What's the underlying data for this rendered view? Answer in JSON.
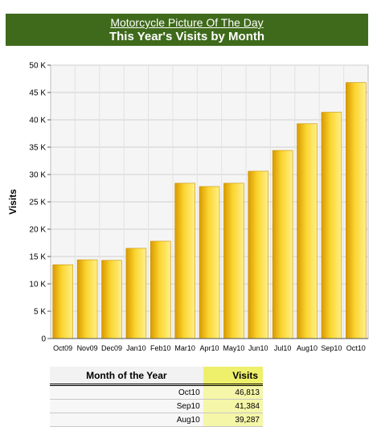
{
  "header": {
    "site_link": "Motorcycle Picture Of The Day",
    "title": "This Year's Visits by Month"
  },
  "chart_data": {
    "type": "bar",
    "title": "This Year's Visits by Month",
    "ylabel": "Visits",
    "xlabel": "",
    "categories": [
      "Oct09",
      "Nov09",
      "Dec09",
      "Jan10",
      "Feb10",
      "Mar10",
      "Apr10",
      "May10",
      "Jun10",
      "Jul10",
      "Aug10",
      "Sep10",
      "Oct10"
    ],
    "values": [
      13500,
      14400,
      14300,
      16500,
      17800,
      28400,
      27800,
      28400,
      30600,
      34400,
      39287,
      41384,
      46813
    ],
    "ylim": [
      0,
      50000
    ],
    "yticks": [
      "0",
      "5 K",
      "10 K",
      "15 K",
      "20 K",
      "25 K",
      "30 K",
      "35 K",
      "40 K",
      "45 K",
      "50 K"
    ],
    "grid": true,
    "bar_color": "#f0c419"
  },
  "table": {
    "headers": {
      "month": "Month of the Year",
      "visits": "Visits"
    },
    "rows": [
      {
        "month": "Oct10",
        "visits": "46,813"
      },
      {
        "month": "Sep10",
        "visits": "41,384"
      },
      {
        "month": "Aug10",
        "visits": "39,287"
      }
    ]
  }
}
